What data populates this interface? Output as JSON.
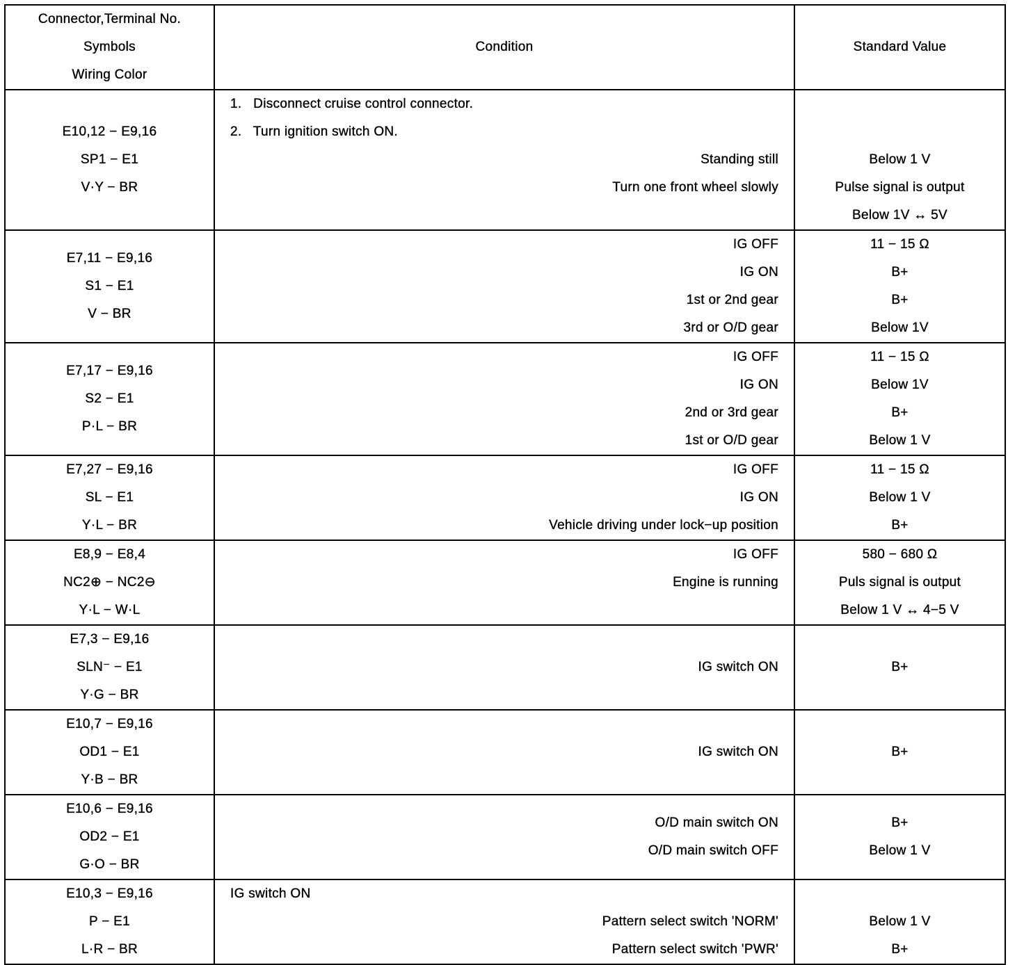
{
  "header": {
    "terminal": [
      "Connector,Terminal No.",
      "Symbols",
      "Wiring Color"
    ],
    "condition": [
      "Condition"
    ],
    "value": [
      "Standard Value"
    ]
  },
  "rows": [
    {
      "terminal": [
        "E10,12 − E9,16",
        "SP1 − E1",
        "V·Y − BR"
      ],
      "condition": [
        {
          "text": "1.   Disconnect cruise control connector.",
          "align": "left"
        },
        {
          "text": "2.   Turn ignition switch ON.",
          "align": "left"
        },
        {
          "text": "Standing still",
          "align": "right"
        },
        {
          "text": "Turn one front wheel slowly",
          "align": "right"
        },
        {
          "text": "",
          "align": "right"
        }
      ],
      "value": [
        "",
        "",
        "Below 1 V",
        "Pulse signal is output",
        "Below 1V ↔ 5V"
      ]
    },
    {
      "terminal": [
        "E7,11 − E9,16",
        "S1 − E1",
        "V − BR"
      ],
      "condition": [
        {
          "text": "IG OFF",
          "align": "right"
        },
        {
          "text": "IG ON",
          "align": "right"
        },
        {
          "text": "1st or 2nd gear",
          "align": "right"
        },
        {
          "text": "3rd or O/D gear",
          "align": "right"
        }
      ],
      "value": [
        "11 − 15 Ω",
        "B+",
        "B+",
        "Below 1V"
      ]
    },
    {
      "terminal": [
        "E7,17 − E9,16",
        "S2 − E1",
        "P·L − BR"
      ],
      "condition": [
        {
          "text": "IG OFF",
          "align": "right"
        },
        {
          "text": "IG ON",
          "align": "right"
        },
        {
          "text": "2nd or 3rd gear",
          "align": "right"
        },
        {
          "text": "1st or O/D gear",
          "align": "right"
        }
      ],
      "value": [
        "11 − 15 Ω",
        "Below 1V",
        "B+",
        "Below 1 V"
      ]
    },
    {
      "terminal": [
        "E7,27 − E9,16",
        "SL − E1",
        "Y·L − BR"
      ],
      "condition": [
        {
          "text": "IG OFF",
          "align": "right"
        },
        {
          "text": "IG ON",
          "align": "right"
        },
        {
          "text": "Vehicle driving under lock−up position",
          "align": "right"
        }
      ],
      "value": [
        "11 − 15 Ω",
        "Below 1 V",
        "B+"
      ]
    },
    {
      "terminal": [
        "E8,9 − E8,4",
        "NC2⊕ − NC2⊖",
        "Y·L − W·L"
      ],
      "condition": [
        {
          "text": "IG OFF",
          "align": "right"
        },
        {
          "text": "Engine is running",
          "align": "right"
        },
        {
          "text": "",
          "align": "right"
        }
      ],
      "value": [
        "580 − 680 Ω",
        "Puls signal is output",
        "Below 1 V ↔ 4−5 V"
      ]
    },
    {
      "terminal": [
        "E7,3 − E9,16",
        "SLN⁻ − E1",
        "Y·G − BR"
      ],
      "condition": [
        {
          "text": "IG switch ON",
          "align": "right"
        }
      ],
      "value": [
        "B+"
      ]
    },
    {
      "terminal": [
        "E10,7 − E9,16",
        "OD1 − E1",
        "Y·B − BR"
      ],
      "condition": [
        {
          "text": "IG switch ON",
          "align": "right"
        }
      ],
      "value": [
        "B+"
      ]
    },
    {
      "terminal": [
        "E10,6 − E9,16",
        "OD2 − E1",
        "G·O − BR"
      ],
      "condition": [
        {
          "text": "O/D main switch ON",
          "align": "right"
        },
        {
          "text": "O/D main switch OFF",
          "align": "right"
        }
      ],
      "value": [
        "B+",
        "Below 1 V"
      ]
    },
    {
      "terminal": [
        "E10,3 − E9,16",
        "P − E1",
        "L·R − BR"
      ],
      "condition": [
        {
          "text": "IG switch ON",
          "align": "left"
        },
        {
          "text": "Pattern select switch 'NORM'",
          "align": "right"
        },
        {
          "text": "Pattern select switch 'PWR'",
          "align": "right"
        }
      ],
      "value": [
        "",
        "Below 1 V",
        "B+"
      ]
    }
  ]
}
